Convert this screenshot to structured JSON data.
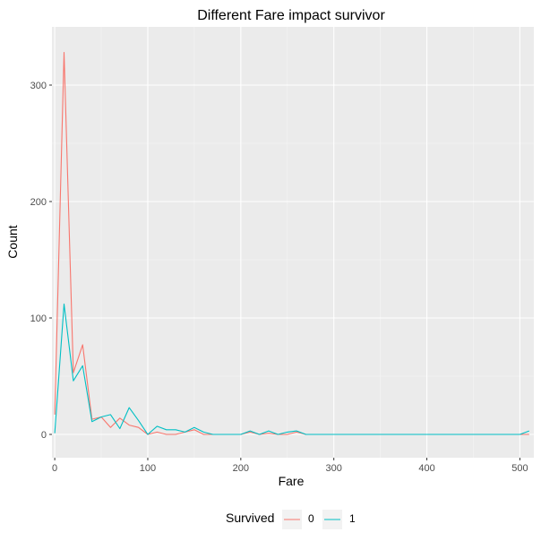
{
  "colors": {
    "panel_background": "#ebebeb",
    "grid_major": "#ffffff",
    "grid_minor": "#f5f5f5",
    "tick_text": "#4d4d4d"
  },
  "chart_data": {
    "type": "line",
    "title": "Different Fare impact survivor",
    "xlabel": "Fare",
    "ylabel": "Count",
    "xlim": [
      -3,
      515
    ],
    "ylim": [
      -20,
      350
    ],
    "x_ticks": [
      0,
      100,
      200,
      300,
      400,
      500
    ],
    "x_tick_labels": [
      "0",
      "100",
      "200",
      "300",
      "400",
      "500"
    ],
    "y_ticks": [
      0,
      100,
      200,
      300
    ],
    "y_tick_labels": [
      "0",
      "100",
      "200",
      "300"
    ],
    "grid": true,
    "legend": {
      "title": "Survived",
      "position": "bottom"
    },
    "series": [
      {
        "name": "0",
        "color": "#f8766d",
        "x": [
          0,
          10,
          20,
          30,
          40,
          50,
          60,
          70,
          80,
          90,
          100,
          110,
          120,
          130,
          140,
          150,
          160,
          170,
          180,
          190,
          200,
          210,
          220,
          230,
          240,
          250,
          260,
          270,
          280,
          290,
          300,
          310,
          320,
          330,
          340,
          350,
          360,
          370,
          380,
          390,
          400,
          410,
          420,
          430,
          440,
          450,
          460,
          470,
          480,
          490,
          500,
          510
        ],
        "y": [
          17,
          328,
          53,
          77,
          13,
          15,
          6,
          14,
          8,
          6,
          0,
          2,
          0,
          0,
          2,
          4,
          0,
          0,
          0,
          0,
          0,
          2,
          0,
          1,
          0,
          0,
          2,
          0,
          0,
          0,
          0,
          0,
          0,
          0,
          0,
          0,
          0,
          0,
          0,
          0,
          0,
          0,
          0,
          0,
          0,
          0,
          0,
          0,
          0,
          0,
          0,
          0
        ]
      },
      {
        "name": "1",
        "color": "#00bfc4",
        "x": [
          0,
          10,
          20,
          30,
          40,
          50,
          60,
          70,
          80,
          90,
          100,
          110,
          120,
          130,
          140,
          150,
          160,
          170,
          180,
          190,
          200,
          210,
          220,
          230,
          240,
          250,
          260,
          270,
          280,
          290,
          300,
          310,
          320,
          330,
          340,
          350,
          360,
          370,
          380,
          390,
          400,
          410,
          420,
          430,
          440,
          450,
          460,
          470,
          480,
          490,
          500,
          510
        ],
        "y": [
          1,
          112,
          46,
          59,
          11,
          15,
          17,
          5,
          23,
          12,
          0,
          7,
          4,
          4,
          2,
          6,
          2,
          0,
          0,
          0,
          0,
          3,
          0,
          3,
          0,
          2,
          3,
          0,
          0,
          0,
          0,
          0,
          0,
          0,
          0,
          0,
          0,
          0,
          0,
          0,
          0,
          0,
          0,
          0,
          0,
          0,
          0,
          0,
          0,
          0,
          0,
          3
        ]
      }
    ]
  }
}
